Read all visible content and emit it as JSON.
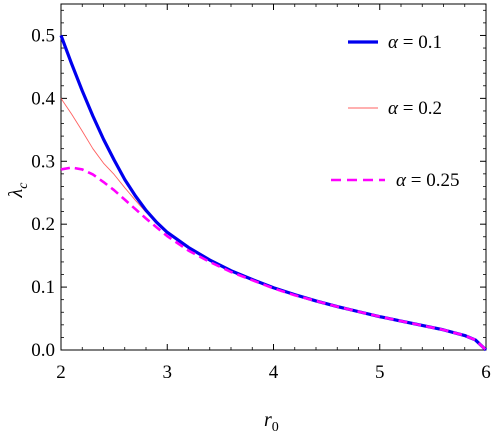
{
  "chart_data": {
    "type": "line",
    "xlabel": "r",
    "xlabel_sub": "0",
    "ylabel": "λ",
    "ylabel_sub": "c",
    "xlim": [
      2,
      6
    ],
    "ylim": [
      0,
      0.55
    ],
    "xticks": [
      2,
      3,
      4,
      5,
      6
    ],
    "xtick_labels": [
      "2",
      "3",
      "4",
      "5",
      "6"
    ],
    "yticks": [
      0,
      0.1,
      0.2,
      0.3,
      0.4,
      0.5
    ],
    "ytick_labels": [
      "0.0",
      "0.1",
      "0.2",
      "0.3",
      "0.4",
      "0.5"
    ],
    "grid": false,
    "legend_position": "top-right",
    "series": [
      {
        "name": "α = 0.1",
        "color": "#0000ee",
        "style": "solid-thick",
        "x": [
          2.0,
          2.1,
          2.2,
          2.3,
          2.4,
          2.5,
          2.6,
          2.7,
          2.8,
          2.9,
          3.0,
          3.2,
          3.4,
          3.6,
          3.8,
          4.0,
          4.2,
          4.4,
          4.6,
          4.8,
          5.0,
          5.2,
          5.4,
          5.6,
          5.8,
          5.9,
          6.0
        ],
        "y": [
          0.5,
          0.455,
          0.412,
          0.372,
          0.335,
          0.302,
          0.271,
          0.245,
          0.222,
          0.203,
          0.187,
          0.163,
          0.143,
          0.126,
          0.112,
          0.099,
          0.088,
          0.078,
          0.069,
          0.061,
          0.053,
          0.046,
          0.039,
          0.032,
          0.023,
          0.016,
          0.0
        ]
      },
      {
        "name": "α = 0.2",
        "color": "#ff6060",
        "style": "solid-thin",
        "x": [
          2.0,
          2.1,
          2.2,
          2.3,
          2.4,
          2.5,
          2.6,
          2.7,
          2.8,
          2.9,
          3.0,
          3.2,
          3.4,
          3.6,
          3.8,
          4.0,
          4.2,
          4.4,
          4.6,
          4.8,
          5.0,
          5.2,
          5.4,
          5.6,
          5.8,
          5.9,
          6.0
        ],
        "y": [
          0.4,
          0.375,
          0.348,
          0.32,
          0.297,
          0.279,
          0.258,
          0.238,
          0.219,
          0.202,
          0.186,
          0.162,
          0.142,
          0.126,
          0.112,
          0.099,
          0.088,
          0.078,
          0.069,
          0.061,
          0.053,
          0.046,
          0.039,
          0.032,
          0.023,
          0.016,
          0.0
        ]
      },
      {
        "name": "α = 0.25",
        "color": "#ff00ff",
        "style": "dashed",
        "x": [
          2.0,
          2.1,
          2.2,
          2.3,
          2.4,
          2.5,
          2.6,
          2.7,
          2.8,
          2.9,
          3.0,
          3.2,
          3.4,
          3.6,
          3.8,
          4.0,
          4.2,
          4.4,
          4.6,
          4.8,
          5.0,
          5.2,
          5.4,
          5.6,
          5.8,
          5.9,
          6.0
        ],
        "y": [
          0.287,
          0.29,
          0.287,
          0.279,
          0.267,
          0.254,
          0.239,
          0.224,
          0.209,
          0.195,
          0.181,
          0.158,
          0.14,
          0.124,
          0.111,
          0.098,
          0.087,
          0.078,
          0.069,
          0.061,
          0.053,
          0.046,
          0.039,
          0.032,
          0.023,
          0.016,
          0.0
        ]
      }
    ]
  }
}
